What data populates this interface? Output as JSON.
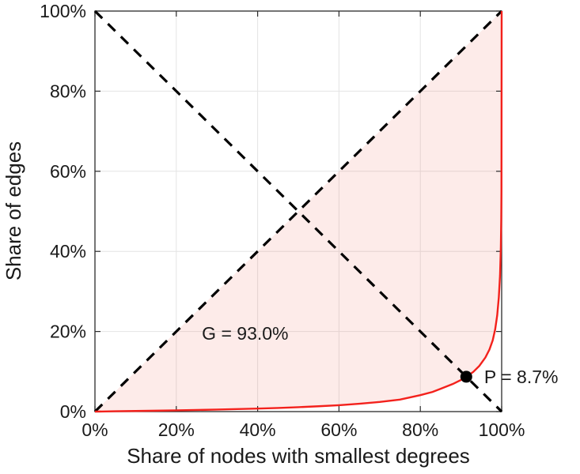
{
  "chart_data": {
    "type": "line",
    "title": "",
    "xlabel": "Share of nodes with smallest degrees",
    "ylabel": "Share of edges",
    "xlim": [
      0,
      100
    ],
    "ylim": [
      0,
      100
    ],
    "grid": true,
    "legend": "none",
    "xticks": {
      "values": [
        0,
        20,
        40,
        60,
        80,
        100
      ],
      "labels": [
        "0%",
        "20%",
        "40%",
        "60%",
        "80%",
        "100%"
      ]
    },
    "yticks": {
      "values": [
        0,
        20,
        40,
        60,
        80,
        100
      ],
      "labels": [
        "0%",
        "20%",
        "40%",
        "60%",
        "80%",
        "100%"
      ]
    },
    "series": [
      {
        "name": "equality-diagonal",
        "color": "#000000",
        "width": 3.2,
        "dash": "13 10",
        "points": [
          [
            0,
            0
          ],
          [
            100,
            100
          ]
        ]
      },
      {
        "name": "anti-diagonal",
        "color": "#000000",
        "width": 3.2,
        "dash": "13 10",
        "points": [
          [
            0,
            100
          ],
          [
            100,
            0
          ]
        ]
      },
      {
        "name": "lorenz-curve",
        "color": "#f3211c",
        "width": 2.4,
        "dash": "",
        "points": [
          [
            0,
            0
          ],
          [
            5,
            0.08
          ],
          [
            10,
            0.15
          ],
          [
            15,
            0.22
          ],
          [
            20,
            0.3
          ],
          [
            25,
            0.4
          ],
          [
            30,
            0.5
          ],
          [
            35,
            0.62
          ],
          [
            40,
            0.75
          ],
          [
            45,
            0.9
          ],
          [
            50,
            1.1
          ],
          [
            55,
            1.33
          ],
          [
            60,
            1.6
          ],
          [
            65,
            1.95
          ],
          [
            70,
            2.4
          ],
          [
            75,
            3.0
          ],
          [
            80,
            4.1
          ],
          [
            83,
            4.9
          ],
          [
            85,
            5.7
          ],
          [
            88,
            6.9
          ],
          [
            90,
            7.9
          ],
          [
            91.3,
            8.7
          ],
          [
            93,
            9.9
          ],
          [
            94.5,
            11.4
          ],
          [
            96,
            13.5
          ],
          [
            97,
            15.5
          ],
          [
            97.8,
            17.8
          ],
          [
            98.4,
            20.5
          ],
          [
            98.9,
            24
          ],
          [
            99.3,
            28.5
          ],
          [
            99.6,
            34
          ],
          [
            99.8,
            41
          ],
          [
            99.9,
            48
          ],
          [
            99.95,
            55
          ],
          [
            100,
            100
          ]
        ]
      }
    ],
    "fill_between": {
      "upper": "equality-diagonal",
      "lower": "lorenz-curve",
      "color": "#f2594b",
      "opacity": 0.12
    },
    "point": {
      "x": 91.3,
      "y": 8.7,
      "radius": 7.5,
      "color": "#000000",
      "label": "P = 8.7%"
    },
    "annotations": [
      {
        "name": "gini-label",
        "text": "G = 93.0%",
        "x": 26.3,
        "y": 17.9,
        "anchor": "start"
      },
      {
        "name": "p-label",
        "text": "P = 8.7%",
        "x": 95.7,
        "y": 7.1,
        "anchor": "start"
      }
    ],
    "gini_value": "93.0%",
    "p_value": "8.7%"
  }
}
